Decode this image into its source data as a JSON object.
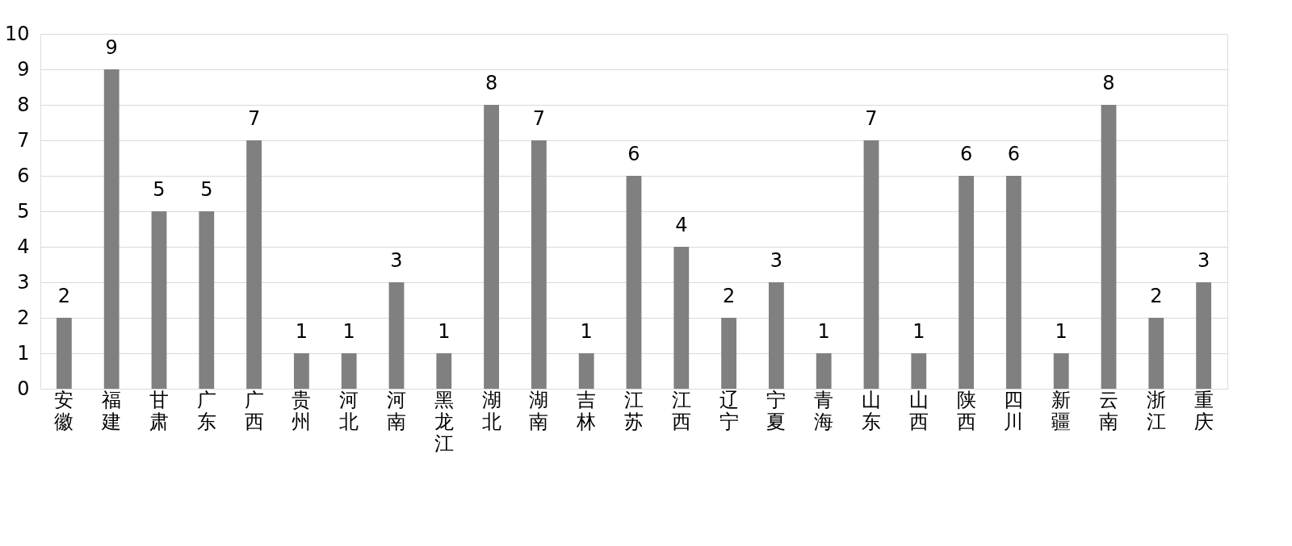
{
  "chart_data": {
    "type": "bar",
    "categories": [
      "安徽",
      "福建",
      "甘肃",
      "广东",
      "广西",
      "贵州",
      "河北",
      "河南",
      "黑龙江",
      "湖北",
      "湖南",
      "吉林",
      "江苏",
      "江西",
      "辽宁",
      "宁夏",
      "青海",
      "山东",
      "山西",
      "陕西",
      "四川",
      "新疆",
      "云南",
      "浙江",
      "重庆"
    ],
    "values": [
      2,
      9,
      5,
      5,
      7,
      1,
      1,
      3,
      1,
      8,
      7,
      1,
      6,
      4,
      2,
      3,
      1,
      7,
      1,
      6,
      6,
      1,
      8,
      2,
      3
    ],
    "color": "#808080",
    "ylim": [
      0,
      10
    ],
    "yticks": [
      0,
      1,
      2,
      3,
      4,
      5,
      6,
      7,
      8,
      9,
      10
    ],
    "grid": "y",
    "data_labels": true
  }
}
